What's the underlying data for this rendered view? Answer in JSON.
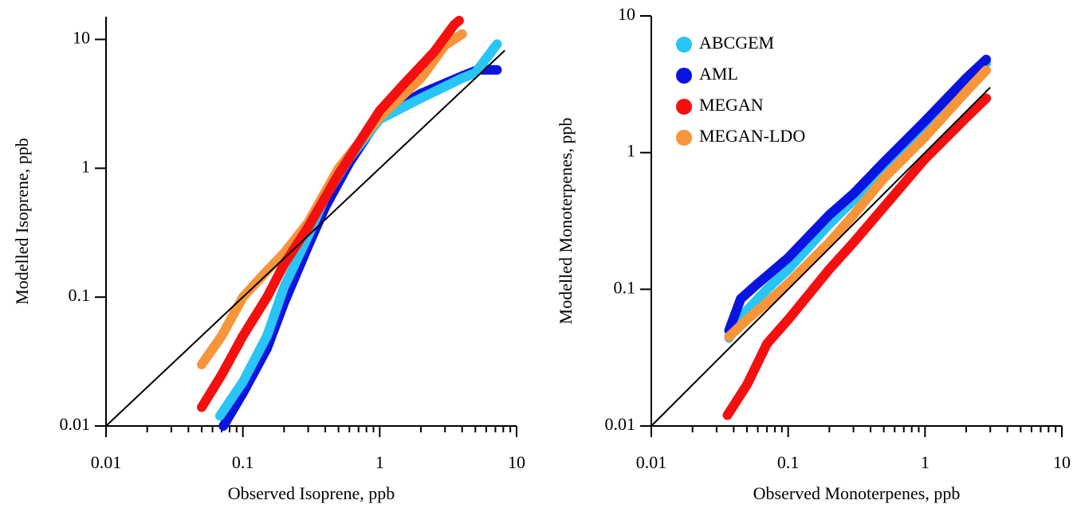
{
  "chart_data": [
    {
      "type": "line",
      "xscale": "log",
      "yscale": "log",
      "xlabel": "Observed Isoprene, ppb",
      "ylabel": "Modelled Isoprene, ppb",
      "xlim": [
        0.01,
        10
      ],
      "ylim": [
        0.01,
        15
      ],
      "xticks": [
        0.01,
        0.1,
        1,
        10
      ],
      "yticks": [
        0.01,
        0.1,
        1,
        10
      ],
      "xminor": [
        0.02,
        0.03,
        0.04,
        0.05,
        0.06,
        0.07,
        0.08,
        0.09,
        0.2,
        0.3,
        0.4,
        0.5,
        0.6,
        0.7,
        0.8,
        0.9,
        2,
        3,
        4,
        5,
        6,
        7,
        8,
        9
      ],
      "reference_line": {
        "x": [
          0.01,
          8.2
        ],
        "values": [
          0.01,
          8.2
        ],
        "color": "#000000"
      },
      "series": [
        {
          "color": "#0a14e0",
          "x": [
            0.072,
            0.1,
            0.15,
            0.2,
            0.3,
            0.4,
            0.6,
            1,
            2,
            4,
            5.2,
            7.2
          ],
          "values": [
            0.01,
            0.018,
            0.04,
            0.09,
            0.25,
            0.5,
            1.1,
            2.5,
            3.8,
            5.2,
            5.8,
            5.8
          ]
        },
        {
          "color": "#29c5f6",
          "x": [
            0.068,
            0.1,
            0.15,
            0.2,
            0.3,
            0.4,
            0.6,
            1,
            2,
            4,
            5,
            7.2
          ],
          "values": [
            0.012,
            0.022,
            0.05,
            0.12,
            0.3,
            0.6,
            1.2,
            2.4,
            3.5,
            5,
            5.5,
            9.2
          ]
        },
        {
          "color": "#f7953b",
          "x": [
            0.05,
            0.07,
            0.1,
            0.15,
            0.2,
            0.3,
            0.5,
            1,
            2,
            3,
            4
          ],
          "values": [
            0.03,
            0.05,
            0.1,
            0.16,
            0.22,
            0.38,
            1.0,
            2.5,
            5,
            9,
            11
          ]
        },
        {
          "color": "#f5100f",
          "x": [
            0.05,
            0.07,
            0.1,
            0.15,
            0.2,
            0.3,
            0.5,
            1,
            1.5,
            2.5,
            3.5,
            3.8
          ],
          "values": [
            0.014,
            0.025,
            0.05,
            0.1,
            0.18,
            0.35,
            0.9,
            2.8,
            4.5,
            8,
            13,
            14
          ]
        }
      ]
    },
    {
      "type": "line",
      "xscale": "log",
      "yscale": "log",
      "xlabel": "Observed Monoterpenes, ppb",
      "ylabel": "Modelled Monoterpenes, ppb",
      "xlim": [
        0.01,
        10
      ],
      "ylim": [
        0.01,
        10
      ],
      "xticks": [
        0.01,
        0.1,
        1,
        10
      ],
      "yticks": [
        0.01,
        0.1,
        1,
        10
      ],
      "xminor": [
        0.02,
        0.03,
        0.04,
        0.05,
        0.06,
        0.07,
        0.08,
        0.09,
        0.2,
        0.3,
        0.4,
        0.5,
        0.6,
        0.7,
        0.8,
        0.9,
        2,
        3,
        4,
        5,
        6,
        7,
        8,
        9
      ],
      "reference_line": {
        "x": [
          0.01,
          3
        ],
        "values": [
          0.01,
          3
        ],
        "color": "#000000"
      },
      "legend": "upper left",
      "series": [
        {
          "name": "ABCGEM",
          "color": "#29c5f6",
          "x": [
            0.037,
            0.05,
            0.07,
            0.1,
            0.2,
            0.3,
            0.5,
            1,
            2,
            2.8
          ],
          "values": [
            0.044,
            0.07,
            0.1,
            0.14,
            0.3,
            0.45,
            0.8,
            1.6,
            3.2,
            4.5
          ]
        },
        {
          "name": "AML",
          "color": "#0a14e0",
          "x": [
            0.037,
            0.045,
            0.06,
            0.1,
            0.2,
            0.3,
            0.5,
            1,
            2,
            2.8
          ],
          "values": [
            0.05,
            0.085,
            0.11,
            0.17,
            0.35,
            0.5,
            0.85,
            1.7,
            3.5,
            4.8
          ]
        },
        {
          "name": "MEGAN",
          "color": "#f5100f",
          "x": [
            0.036,
            0.05,
            0.07,
            0.1,
            0.2,
            0.3,
            0.5,
            1,
            2,
            2.8
          ],
          "values": [
            0.012,
            0.02,
            0.04,
            0.06,
            0.14,
            0.22,
            0.4,
            0.9,
            1.8,
            2.5
          ]
        },
        {
          "name": "MEGAN-LDO",
          "color": "#f7953b",
          "x": [
            0.037,
            0.05,
            0.07,
            0.1,
            0.2,
            0.3,
            0.5,
            1,
            2,
            2.8
          ],
          "values": [
            0.045,
            0.06,
            0.08,
            0.11,
            0.22,
            0.35,
            0.65,
            1.3,
            2.8,
            4.0
          ]
        }
      ]
    }
  ]
}
